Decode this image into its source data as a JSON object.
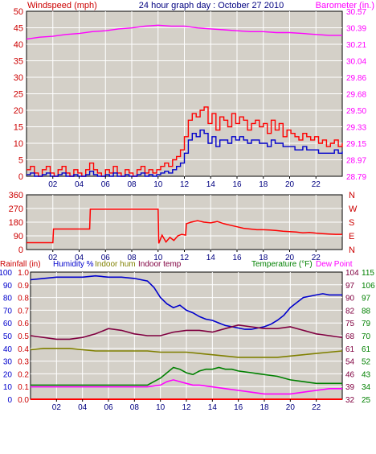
{
  "colors": {
    "background": "#ffffff",
    "plot_bg": "#d4d0c8",
    "frame": "#000000",
    "grid": "#ffffff",
    "wind_gust": "#ff0000",
    "wind_avg": "#0000cc",
    "barometer": "#ff00ff",
    "direction": "#ff0000",
    "humidity": "#0000cc",
    "indoor_hum": "#808000",
    "indoor_temp": "#800040",
    "temperature": "#008000",
    "dew_point": "#ff00ff",
    "rainfall": "#ff0000",
    "title": "#000080",
    "label_red": "#cc0000",
    "label_green": "#008000"
  },
  "chart_data": [
    {
      "id": "wind",
      "type": "line",
      "title": "24 hour graph day : October 27 2010",
      "left_axis_label": "Windspeed (mph)",
      "right_axis_label": "Barometer (in.)",
      "x_ticks": [
        "02",
        "04",
        "06",
        "08",
        "10",
        "12",
        "14",
        "16",
        "18",
        "20",
        "22"
      ],
      "x_range": [
        0,
        24
      ],
      "left_ylim": [
        0,
        50
      ],
      "left_ticks": [
        "0",
        "5",
        "10",
        "15",
        "20",
        "25",
        "30",
        "35",
        "40",
        "45",
        "50"
      ],
      "right_ylim": [
        28.79,
        30.57
      ],
      "right_ticks": [
        "28.79",
        "28.97",
        "29.15",
        "29.33",
        "29.50",
        "29.68",
        "29.86",
        "30.04",
        "30.21",
        "30.39",
        "30.57"
      ],
      "grid": true,
      "series": [
        {
          "key": "gust",
          "axis": "left",
          "x": [
            0,
            0.3,
            0.6,
            0.9,
            1.2,
            1.5,
            1.8,
            2.1,
            2.4,
            2.7,
            3,
            3.3,
            3.6,
            3.9,
            4.2,
            4.5,
            4.8,
            5.1,
            5.4,
            5.7,
            6,
            6.3,
            6.6,
            6.9,
            7.2,
            7.5,
            7.8,
            8.1,
            8.4,
            8.7,
            9,
            9.3,
            9.6,
            9.9,
            10.2,
            10.5,
            10.8,
            11.1,
            11.4,
            11.7,
            12,
            12.3,
            12.6,
            12.9,
            13.2,
            13.5,
            13.8,
            14.1,
            14.4,
            14.7,
            15,
            15.3,
            15.6,
            15.9,
            16.2,
            16.5,
            16.8,
            17.1,
            17.4,
            17.7,
            18,
            18.3,
            18.6,
            18.9,
            19.2,
            19.5,
            19.8,
            20.1,
            20.4,
            20.7,
            21,
            21.3,
            21.6,
            21.9,
            22.2,
            22.5,
            22.8,
            23.1,
            23.4,
            23.7,
            24
          ],
          "values": [
            2,
            3,
            1,
            0,
            2,
            3,
            1,
            0,
            2,
            3,
            1,
            0,
            2,
            1,
            0,
            2,
            4,
            2,
            1,
            0,
            2,
            1,
            3,
            1,
            0,
            2,
            1,
            0,
            2,
            3,
            1,
            2,
            1,
            2,
            3,
            4,
            3,
            5,
            6,
            8,
            12,
            17,
            19,
            18,
            20,
            21,
            16,
            19,
            14,
            18,
            17,
            15,
            19,
            16,
            18,
            17,
            14,
            16,
            17,
            15,
            16,
            13,
            17,
            14,
            16,
            12,
            14,
            13,
            12,
            11,
            13,
            12,
            11,
            12,
            10,
            11,
            9,
            10,
            11,
            9,
            10
          ]
        },
        {
          "key": "avg",
          "axis": "left",
          "x": [
            0,
            0.3,
            0.6,
            0.9,
            1.2,
            1.5,
            1.8,
            2.1,
            2.4,
            2.7,
            3,
            3.3,
            3.6,
            3.9,
            4.2,
            4.5,
            4.8,
            5.1,
            5.4,
            5.7,
            6,
            6.3,
            6.6,
            6.9,
            7.2,
            7.5,
            7.8,
            8.1,
            8.4,
            8.7,
            9,
            9.3,
            9.6,
            9.9,
            10.2,
            10.5,
            10.8,
            11.1,
            11.4,
            11.7,
            12,
            12.3,
            12.6,
            12.9,
            13.2,
            13.5,
            13.8,
            14.1,
            14.4,
            14.7,
            15,
            15.3,
            15.6,
            15.9,
            16.2,
            16.5,
            16.8,
            17.1,
            17.4,
            17.7,
            18,
            18.3,
            18.6,
            18.9,
            19.2,
            19.5,
            19.8,
            20.1,
            20.4,
            20.7,
            21,
            21.3,
            21.6,
            21.9,
            22.2,
            22.5,
            22.8,
            23.1,
            23.4,
            23.7,
            24
          ],
          "values": [
            0.5,
            1,
            0,
            0,
            0.5,
            1,
            0,
            0,
            0.5,
            1,
            0,
            0,
            0.5,
            0,
            0,
            0.5,
            1.5,
            0.5,
            0,
            0,
            0.5,
            0,
            1,
            0,
            0,
            0.5,
            0,
            0,
            0.5,
            1,
            0,
            0.5,
            0,
            0.5,
            1,
            1.5,
            1,
            2,
            3,
            4,
            7,
            11,
            13,
            12,
            14,
            13,
            10,
            12,
            9,
            11,
            11,
            10,
            12,
            11,
            12,
            11,
            10,
            11,
            11,
            10,
            10,
            9,
            11,
            10,
            10,
            9,
            9,
            9,
            8,
            8,
            9,
            8,
            8,
            8,
            7,
            7,
            7,
            7,
            8,
            7,
            7.5
          ]
        },
        {
          "key": "baro",
          "axis": "right",
          "x": [
            0,
            1,
            2,
            3,
            4,
            5,
            6,
            7,
            8,
            9,
            10,
            11,
            12,
            13,
            14,
            15,
            16,
            17,
            18,
            19,
            20,
            21,
            22,
            23,
            24
          ],
          "values": [
            30.27,
            30.29,
            30.3,
            30.32,
            30.33,
            30.35,
            30.36,
            30.38,
            30.39,
            30.41,
            30.42,
            30.41,
            30.41,
            30.39,
            30.38,
            30.37,
            30.36,
            30.35,
            30.35,
            30.34,
            30.34,
            30.33,
            30.32,
            30.31,
            30.31
          ]
        }
      ]
    },
    {
      "id": "direction",
      "type": "line",
      "left_ticks": [
        "0",
        "90",
        "180",
        "270",
        "360"
      ],
      "left_ylim": [
        0,
        360
      ],
      "right_ticks": [
        "N",
        "E",
        "S",
        "W",
        "N"
      ],
      "x_ticks": [
        "02",
        "04",
        "06",
        "08",
        "10",
        "12",
        "14",
        "16",
        "18",
        "20",
        "22"
      ],
      "x_range": [
        0,
        24
      ],
      "grid": true,
      "series": [
        {
          "key": "dir",
          "x": [
            0,
            2,
            2.05,
            4.8,
            4.85,
            10,
            10.05,
            10.3,
            10.6,
            10.9,
            11.2,
            11.5,
            11.8,
            12.1,
            12.15,
            12.5,
            13,
            13.5,
            14,
            14.5,
            15,
            15.5,
            16,
            16.5,
            17,
            17.5,
            18,
            18.5,
            19,
            19.5,
            20,
            20.5,
            21,
            21.5,
            22,
            22.5,
            23,
            23.5,
            24
          ],
          "values": [
            45,
            45,
            135,
            135,
            265,
            265,
            40,
            95,
            50,
            80,
            60,
            90,
            100,
            95,
            170,
            180,
            190,
            180,
            175,
            185,
            170,
            160,
            150,
            140,
            135,
            130,
            130,
            128,
            125,
            120,
            118,
            115,
            110,
            112,
            108,
            105,
            102,
            100,
            100
          ]
        }
      ]
    },
    {
      "id": "temperature",
      "type": "line",
      "labels": {
        "rain": "Rainfall (in)",
        "humidity": "Humidity %",
        "indoor_hum": "Indoor hum",
        "indoor_temp": "Indoor temp",
        "temperature": "Temperature (°F)",
        "dew_point": "Dew Point"
      },
      "rain_ticks": [
        "0.0",
        "0.1",
        "0.2",
        "0.3",
        "0.4",
        "0.5",
        "0.6",
        "0.7",
        "0.8",
        "0.9",
        "1.0"
      ],
      "humidity_ticks": [
        "0",
        "10",
        "20",
        "30",
        "40",
        "50",
        "60",
        "70",
        "80",
        "90",
        "100"
      ],
      "right_ticks_a": [
        "32",
        "39",
        "46",
        "54",
        "61",
        "68",
        "75",
        "82",
        "90",
        "97",
        "104"
      ],
      "right_ticks_b": [
        "25",
        "34",
        "43",
        "52",
        "61",
        "70",
        "79",
        "88",
        "97",
        "106",
        "115"
      ],
      "humidity_ylim": [
        0,
        100
      ],
      "temp_ylim": [
        32,
        104
      ],
      "x_ticks": [
        "02",
        "04",
        "06",
        "08",
        "10",
        "12",
        "14",
        "16",
        "18",
        "20",
        "22"
      ],
      "x_range": [
        0,
        24
      ],
      "grid": true,
      "series": [
        {
          "key": "humidity",
          "axis": "humidity",
          "x": [
            0,
            1,
            2,
            3,
            4,
            5,
            6,
            7,
            8,
            9,
            9.5,
            10,
            10.5,
            11,
            11.5,
            12,
            12.5,
            13,
            13.5,
            14,
            14.5,
            15,
            15.5,
            16,
            16.5,
            17,
            17.5,
            18,
            18.5,
            19,
            19.5,
            20,
            20.5,
            21,
            21.5,
            22,
            22.5,
            23,
            24
          ],
          "values": [
            94,
            95,
            96,
            96,
            96,
            97,
            96,
            96,
            95,
            93,
            88,
            80,
            75,
            72,
            74,
            70,
            68,
            65,
            63,
            62,
            60,
            58,
            57,
            56,
            55,
            55,
            56,
            57,
            59,
            62,
            66,
            72,
            76,
            80,
            81,
            82,
            83,
            82,
            82
          ]
        },
        {
          "key": "indoor_temp",
          "axis": "temp",
          "x": [
            0,
            1,
            2,
            3,
            4,
            5,
            6,
            7,
            8,
            9,
            10,
            11,
            12,
            13,
            14,
            15,
            16,
            17,
            18,
            19,
            20,
            21,
            22,
            23,
            24
          ],
          "values": [
            68,
            67,
            66,
            66,
            67,
            69,
            72,
            71,
            69,
            68,
            68,
            70,
            71,
            71,
            70,
            72,
            74,
            73,
            72,
            72,
            73,
            71,
            69,
            68,
            67
          ]
        },
        {
          "key": "indoor_hum",
          "axis": "humidity",
          "x": [
            0,
            1,
            2,
            3,
            4,
            5,
            6,
            7,
            8,
            9,
            10,
            11,
            12,
            13,
            14,
            15,
            16,
            17,
            18,
            19,
            20,
            21,
            22,
            23,
            24
          ],
          "values": [
            39,
            40,
            40,
            40,
            39,
            38,
            38,
            38,
            38,
            38,
            37,
            37,
            37,
            36,
            35,
            34,
            33,
            33,
            33,
            33,
            34,
            35,
            36,
            37,
            38
          ]
        },
        {
          "key": "temperature",
          "axis": "temp",
          "x": [
            0,
            1,
            2,
            3,
            4,
            5,
            6,
            7,
            8,
            9,
            9.5,
            10,
            10.5,
            11,
            11.5,
            12,
            12.5,
            13,
            13.5,
            14,
            14.5,
            15,
            15.5,
            16,
            17,
            18,
            19,
            20,
            21,
            22,
            23,
            24
          ],
          "values": [
            40,
            40,
            40,
            40,
            40,
            40,
            40,
            40,
            40,
            40,
            42,
            44,
            47,
            50,
            49,
            47,
            46,
            48,
            49,
            49,
            50,
            49,
            49,
            48,
            47,
            46,
            45,
            43,
            42,
            41,
            41,
            41
          ]
        },
        {
          "key": "dew_point",
          "axis": "temp",
          "x": [
            0,
            1,
            2,
            3,
            4,
            5,
            6,
            7,
            8,
            9,
            10,
            10.5,
            11,
            11.5,
            12,
            12.5,
            13,
            14,
            15,
            16,
            17,
            18,
            19,
            20,
            21,
            22,
            23,
            24
          ],
          "values": [
            39,
            39,
            39,
            39,
            39,
            39,
            39,
            39,
            39,
            39,
            40,
            42,
            43,
            42,
            41,
            40,
            40,
            39,
            38,
            37,
            36,
            35,
            35,
            35,
            36,
            37,
            38,
            38
          ]
        },
        {
          "key": "rain",
          "axis": "humidity",
          "x": [
            0,
            24
          ],
          "values": [
            0,
            0
          ]
        }
      ]
    }
  ]
}
